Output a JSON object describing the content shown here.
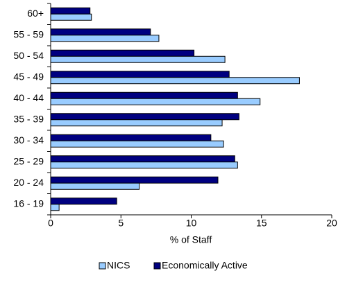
{
  "chart_data": {
    "type": "barh",
    "categories": [
      "60+",
      "55 - 59",
      "50 - 54",
      "45 - 49",
      "40 - 44",
      "35 - 39",
      "30 - 34",
      "25 - 29",
      "20 - 24",
      "16 - 19"
    ],
    "series": [
      {
        "name": "NICS",
        "color": "#99ccff",
        "values": [
          2.9,
          7.7,
          12.4,
          17.7,
          14.9,
          12.2,
          12.3,
          13.3,
          6.3,
          0.6
        ]
      },
      {
        "name": "Economically Active",
        "color": "#000080",
        "values": [
          2.8,
          7.1,
          10.2,
          12.7,
          13.3,
          13.4,
          11.4,
          13.1,
          11.9,
          4.7
        ]
      }
    ],
    "xlabel": "% of Staff",
    "xlim": [
      0,
      20
    ],
    "xticks": [
      0,
      5,
      10,
      15,
      20
    ],
    "grid": false,
    "legend": "bottom"
  }
}
